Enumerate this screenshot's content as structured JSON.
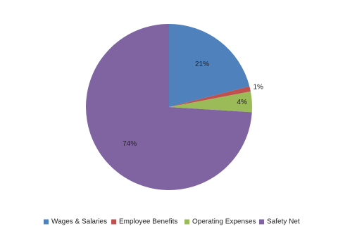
{
  "chart_data": {
    "type": "pie",
    "categories": [
      "Wages & Salaries",
      "Employee Benefits",
      "Operating Expenses",
      "Safety Net"
    ],
    "values": [
      21,
      1,
      4,
      74
    ],
    "value_labels": [
      "21%",
      "1%",
      "4%",
      "74%"
    ],
    "colors": [
      "#4f81bd",
      "#c0504d",
      "#9bbb59",
      "#8064a2"
    ],
    "legend": "bottom"
  }
}
